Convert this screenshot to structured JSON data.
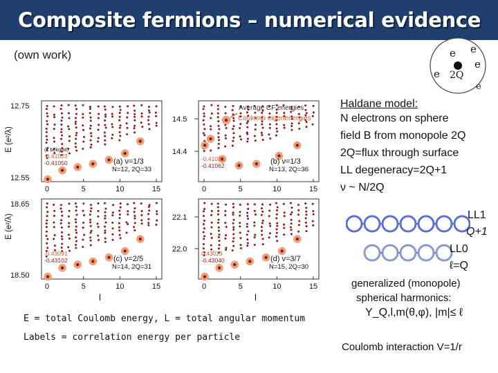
{
  "header": {
    "title": "Composite fermions – numerical evidence",
    "subtitle": "(own work)"
  },
  "sphere": {
    "center_label": "2Q",
    "electron_label": "e"
  },
  "legend": {
    "cf_label": "Average CF energies",
    "coulomb_label": "Coulomb eigenenergies"
  },
  "haldane": {
    "heading": "Haldane model:",
    "lines": [
      "N electrons on sphere",
      "field B from monopole 2Q",
      "2Q=flux through surface",
      "LL degeneracy=2Q+1",
      "ν ~ N/2Q"
    ]
  },
  "ll_diagram": {
    "ll1": "LL1",
    "q1": "Q+1",
    "ll0": "LL0",
    "lq": "ℓ=Q",
    "colors": {
      "ll1": "#5b6fd6",
      "ll0": "#8899cc",
      "ring": "#222222"
    }
  },
  "harmonics": {
    "line1": "generalized (monopole)",
    "line2": "spherical harmonics:",
    "formula": "Y_Q,l,m(θ,φ), |m|≤ ℓ"
  },
  "coulomb_interaction": "Coulomb interaction V=1/r",
  "captions": {
    "line1": "E = total Coulomb energy, L = total angular momentum",
    "line2": "Labels = correlation energy per particle"
  },
  "axes": {
    "ylabel": "E (e²/λ)",
    "xlabel": "l",
    "xticks": [
      "0",
      "5",
      "10",
      "15"
    ]
  },
  "chart_data": [
    {
      "type": "scatter",
      "panel": "a",
      "label": "(a) ν=1/3",
      "params": "N=12, 2Q=33",
      "xlim": [
        0,
        15
      ],
      "ylim": [
        12.55,
        12.75
      ],
      "yticks": [
        "12.75",
        "12.55"
      ],
      "legend_title": "(L bckgnd)",
      "energies": [
        "-0.41023",
        "-0.41050"
      ]
    },
    {
      "type": "scatter",
      "panel": "b",
      "label": "(b) ν=1/3",
      "params": "N=13, 2Q=36",
      "xlim": [
        0,
        15
      ],
      "ylim": [
        14.4,
        14.5
      ],
      "yticks": [
        "14.5",
        "14.4"
      ],
      "energies": [
        "-0.41021",
        "-0.41062"
      ]
    },
    {
      "type": "scatter",
      "panel": "c",
      "label": "(c) ν=2/5",
      "params": "N=14, 2Q=31",
      "xlim": [
        0,
        15
      ],
      "ylim": [
        18.5,
        18.65
      ],
      "yticks": [
        "18.65",
        "18.50"
      ],
      "energies": [
        "-0.43091",
        "-0.43102"
      ]
    },
    {
      "type": "scatter",
      "panel": "d",
      "label": "(d) ν=3/7",
      "params": "N=15, 2Q=30",
      "xlim": [
        0,
        15
      ],
      "ylim": [
        22.0,
        22.1
      ],
      "yticks": [
        "22.1",
        "22.0"
      ],
      "energies": [
        "0.43023",
        "-0.43040"
      ]
    }
  ]
}
